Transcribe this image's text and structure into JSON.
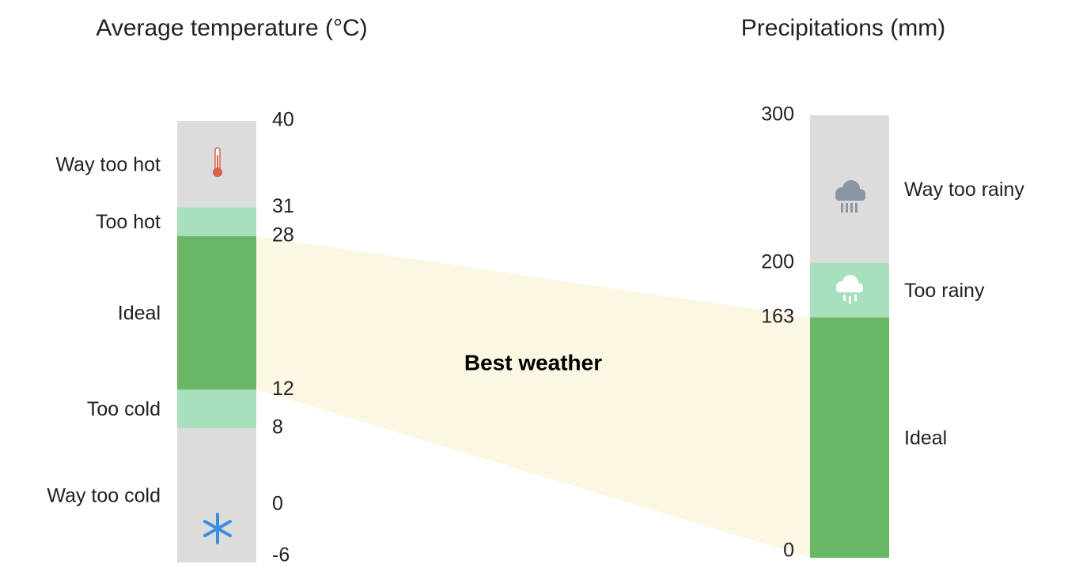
{
  "temperature": {
    "title": "Average temperature (°C)",
    "ticks": [
      40,
      31,
      28,
      12,
      8,
      0,
      -6
    ],
    "bands": [
      {
        "label": "Way too hot",
        "range": [
          40,
          31
        ],
        "color": "#dcdcdc"
      },
      {
        "label": "Too hot",
        "range": [
          31,
          28
        ],
        "color": "#a8dfbd"
      },
      {
        "label": "Ideal",
        "range": [
          28,
          12
        ],
        "color": "#6bb767"
      },
      {
        "label": "Too cold",
        "range": [
          12,
          8
        ],
        "color": "#a8dfbd"
      },
      {
        "label": "Way too cold",
        "range": [
          8,
          -6
        ],
        "color": "#dcdcdc"
      }
    ]
  },
  "precipitation": {
    "title": "Precipitations (mm)",
    "ticks": [
      300,
      200,
      163,
      0
    ],
    "bands": [
      {
        "label": "Way too rainy",
        "range": [
          300,
          200
        ],
        "color": "#dcdcdc"
      },
      {
        "label": "Too rainy",
        "range": [
          200,
          163
        ],
        "color": "#a8dfbd"
      },
      {
        "label": "Ideal",
        "range": [
          163,
          0
        ],
        "color": "#6bb767"
      }
    ]
  },
  "overlap": {
    "label": "Best weather",
    "color": "#fcf7e3"
  }
}
